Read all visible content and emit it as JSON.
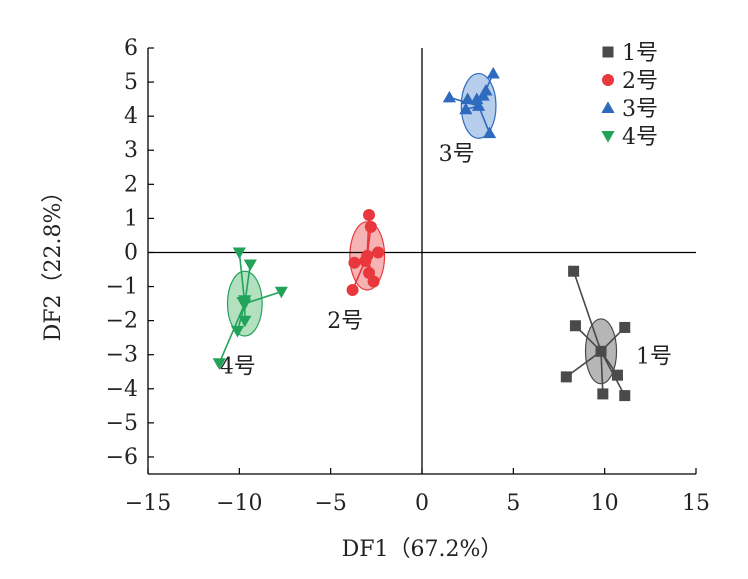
{
  "chart_data": {
    "type": "scatter",
    "xlabel": "DF1（67.2%）",
    "ylabel": "DF2（22.8%）",
    "xlim": [
      -15,
      15
    ],
    "ylim": [
      -6.5,
      6
    ],
    "xticks": [
      -15,
      -10,
      -5,
      0,
      5,
      10,
      15
    ],
    "xtick_labels": [
      "−15",
      "−10",
      "−5",
      "0",
      "5",
      "10",
      "15"
    ],
    "yticks": [
      6,
      5,
      4,
      3,
      2,
      1,
      0,
      -1,
      -2,
      -3,
      -4,
      -5,
      -6
    ],
    "ytick_labels": [
      "6",
      "5",
      "4",
      "3",
      "2",
      "1",
      "0",
      "−1",
      "−2",
      "−3",
      "−4",
      "−5",
      "−6"
    ],
    "grid": false,
    "legend_position": "top-right",
    "series": [
      {
        "name": "1号",
        "marker": "square",
        "color": "#4a4a4a",
        "ellipse_fill": "#a9a9a9",
        "centroid": [
          9.8,
          -2.9
        ],
        "ellipse_radii": [
          0.85,
          0.95
        ],
        "group_label": "1号",
        "points": [
          {
            "x": 8.3,
            "y": -0.55
          },
          {
            "x": 8.4,
            "y": -2.15
          },
          {
            "x": 7.9,
            "y": -3.65
          },
          {
            "x": 9.9,
            "y": -4.15
          },
          {
            "x": 11.1,
            "y": -4.2
          },
          {
            "x": 11.1,
            "y": -2.2
          },
          {
            "x": 10.7,
            "y": -3.6
          }
        ]
      },
      {
        "name": "2号",
        "marker": "circle",
        "color": "#e8383d",
        "ellipse_fill": "#f4a6a6",
        "centroid": [
          -3.0,
          -0.1
        ],
        "ellipse_radii": [
          0.95,
          1.0
        ],
        "group_label": "2号",
        "points": [
          {
            "x": -2.9,
            "y": 1.1
          },
          {
            "x": -2.8,
            "y": 0.75
          },
          {
            "x": -2.4,
            "y": 0.0
          },
          {
            "x": -3.7,
            "y": -0.3
          },
          {
            "x": -3.1,
            "y": -0.25
          },
          {
            "x": -2.9,
            "y": -0.6
          },
          {
            "x": -2.65,
            "y": -0.85
          },
          {
            "x": -3.8,
            "y": -1.1
          }
        ]
      },
      {
        "name": "3号",
        "marker": "triangle-up",
        "color": "#2e6bbf",
        "ellipse_fill": "#a9c4e8",
        "centroid": [
          3.1,
          4.3
        ],
        "ellipse_radii": [
          0.95,
          0.95
        ],
        "group_label": "3号",
        "points": [
          {
            "x": 1.5,
            "y": 4.55
          },
          {
            "x": 2.4,
            "y": 4.2
          },
          {
            "x": 2.5,
            "y": 4.5
          },
          {
            "x": 3.0,
            "y": 4.5
          },
          {
            "x": 3.35,
            "y": 4.6
          },
          {
            "x": 3.5,
            "y": 4.75
          },
          {
            "x": 3.9,
            "y": 5.25
          },
          {
            "x": 3.7,
            "y": 3.5
          }
        ]
      },
      {
        "name": "4号",
        "marker": "triangle-down",
        "color": "#22a35a",
        "ellipse_fill": "#a6dcb5",
        "centroid": [
          -9.7,
          -1.5
        ],
        "ellipse_radii": [
          0.95,
          0.95
        ],
        "group_label": "4号",
        "points": [
          {
            "x": -10.0,
            "y": 0.0
          },
          {
            "x": -9.4,
            "y": -0.35
          },
          {
            "x": -7.7,
            "y": -1.15
          },
          {
            "x": -9.7,
            "y": -1.4
          },
          {
            "x": -9.8,
            "y": -1.45
          },
          {
            "x": -9.7,
            "y": -2.0
          },
          {
            "x": -10.1,
            "y": -2.3
          },
          {
            "x": -11.1,
            "y": -3.25
          }
        ]
      }
    ]
  }
}
